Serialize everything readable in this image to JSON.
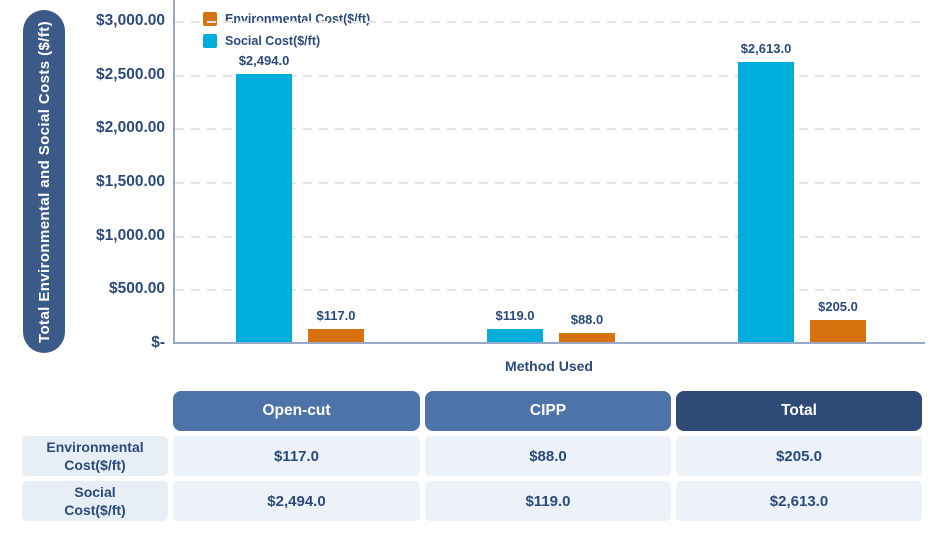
{
  "colors": {
    "environmental": "#D7730F",
    "social": "#00AEDC",
    "navy_text": "#2B4A7B",
    "y_axis_pill_bg": "#3C5A87",
    "table_header_blue": "#4E73A8",
    "table_header_dark": "#2E4A77",
    "row_label_cell_bg": "#E8EEF5",
    "value_cell_bg": "#EDF2F8",
    "axis_line": "#9AA8C7",
    "gridline": "#E4E4E4"
  },
  "chart_data": {
    "type": "bar",
    "title": "",
    "xlabel": "Method Used",
    "ylabel": "Total Environmental and Social Costs ($/ft)",
    "categories": [
      "Open-cut",
      "CIPP",
      "Total"
    ],
    "series": [
      {
        "name": "Social Cost($/ft)",
        "color": "#00AEDC",
        "values": [
          2494.0,
          119.0,
          2613.0
        ],
        "value_labels": [
          "$2,494.0",
          "$119.0",
          "$2,613.0"
        ]
      },
      {
        "name": "Environmental Cost($/ft)",
        "color": "#D7730F",
        "values": [
          117.0,
          88.0,
          205.0
        ],
        "value_labels": [
          "$117.0",
          "$88.0",
          "$205.0"
        ]
      }
    ],
    "legend": [
      {
        "label": "Environmental Cost($/ft)",
        "color": "#D7730F"
      },
      {
        "label": "Social Cost($/ft)",
        "color": "#00AEDC"
      }
    ],
    "legend_position": "top-left",
    "grid": "horizontal-dashed",
    "ylim": [
      0,
      3000
    ],
    "y_ticks": [
      {
        "label": "$3,000.00",
        "value": 3000
      },
      {
        "label": "$2,500.00",
        "value": 2500
      },
      {
        "label": "$2,000.00",
        "value": 2000
      },
      {
        "label": "$1,500.00",
        "value": 1500
      },
      {
        "label": "$1,000.00",
        "value": 1000
      },
      {
        "label": "$500.00",
        "value": 500
      },
      {
        "label": "$-",
        "value": 0
      }
    ]
  },
  "table": {
    "column_headers": [
      "Open-cut",
      "CIPP",
      "Total"
    ],
    "rows": [
      {
        "label": "Environmental\nCost($/ft)",
        "values": [
          "$117.0",
          "$88.0",
          "$205.0"
        ]
      },
      {
        "label": "Social\nCost($/ft)",
        "values": [
          "$2,494.0",
          "$119.0",
          "$2,613.0"
        ]
      }
    ]
  }
}
